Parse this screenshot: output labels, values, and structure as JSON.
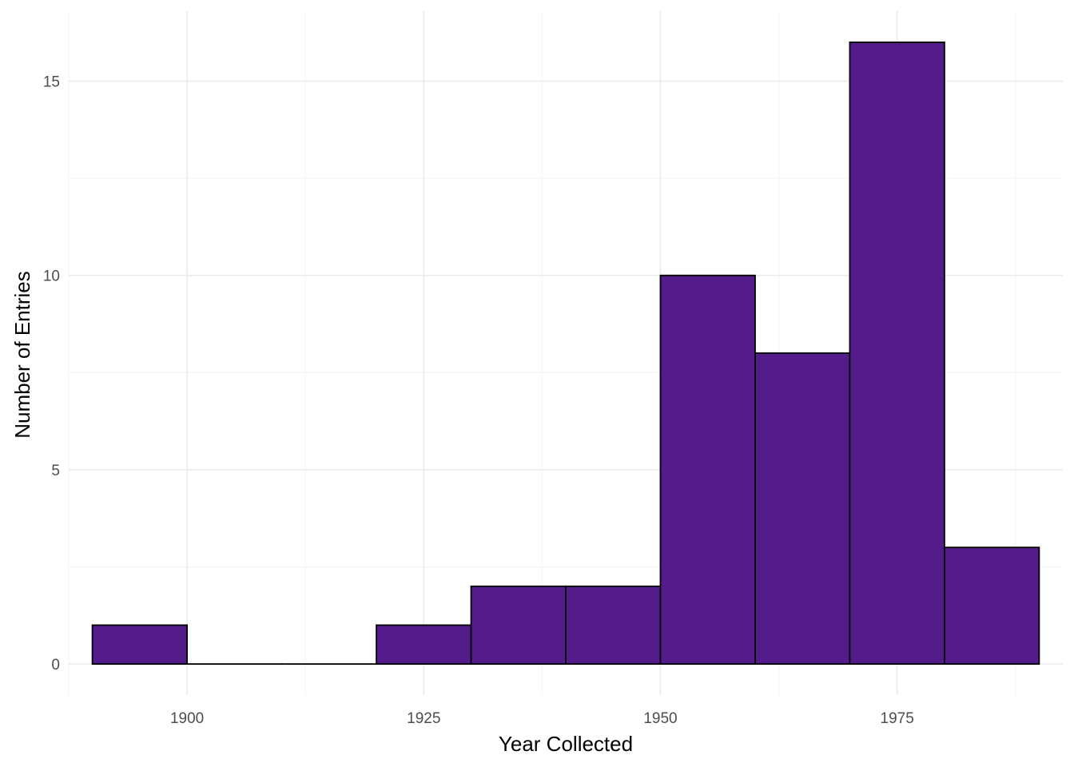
{
  "chart_data": {
    "type": "bar",
    "subtype": "histogram",
    "xlabel": "Year Collected",
    "ylabel": "Number of Entries",
    "bin_width": 10,
    "bins": [
      {
        "start": 1890,
        "end": 1900,
        "count": 1
      },
      {
        "start": 1900,
        "end": 1910,
        "count": 0
      },
      {
        "start": 1910,
        "end": 1920,
        "count": 0
      },
      {
        "start": 1920,
        "end": 1930,
        "count": 1
      },
      {
        "start": 1930,
        "end": 1940,
        "count": 2
      },
      {
        "start": 1940,
        "end": 1950,
        "count": 2
      },
      {
        "start": 1950,
        "end": 1960,
        "count": 10
      },
      {
        "start": 1960,
        "end": 1970,
        "count": 8
      },
      {
        "start": 1970,
        "end": 1980,
        "count": 16
      },
      {
        "start": 1980,
        "end": 1990,
        "count": 3
      }
    ],
    "xlim": [
      1887.5,
      1992.5
    ],
    "ylim": [
      -0.8,
      16.8
    ],
    "x_ticks": [
      1900,
      1925,
      1950,
      1975
    ],
    "y_ticks": [
      0,
      5,
      10,
      15
    ],
    "x_tick_labels": [
      "1900",
      "1925",
      "1950",
      "1975"
    ],
    "y_tick_labels": [
      "0",
      "5",
      "10",
      "15"
    ],
    "grid": true,
    "legend": "none",
    "colors": {
      "bar_fill": "#541C8A",
      "bar_outline": "#000000",
      "grid_major": "#EBEBEB",
      "grid_minor": "#F3F3F3",
      "tick_text": "#4D4D4D",
      "title_text": "#000000"
    }
  }
}
